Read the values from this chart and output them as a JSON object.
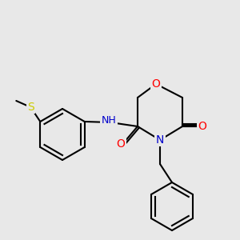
{
  "bg_color": "#e8e8e8",
  "bond_color": "#000000",
  "bond_width": 1.5,
  "atom_colors": {
    "O": "#ff0000",
    "N": "#0000cc",
    "S": "#cccc00",
    "C": "#000000"
  },
  "font_size": 9,
  "fig_size": [
    3.0,
    3.0
  ],
  "dpi": 100
}
